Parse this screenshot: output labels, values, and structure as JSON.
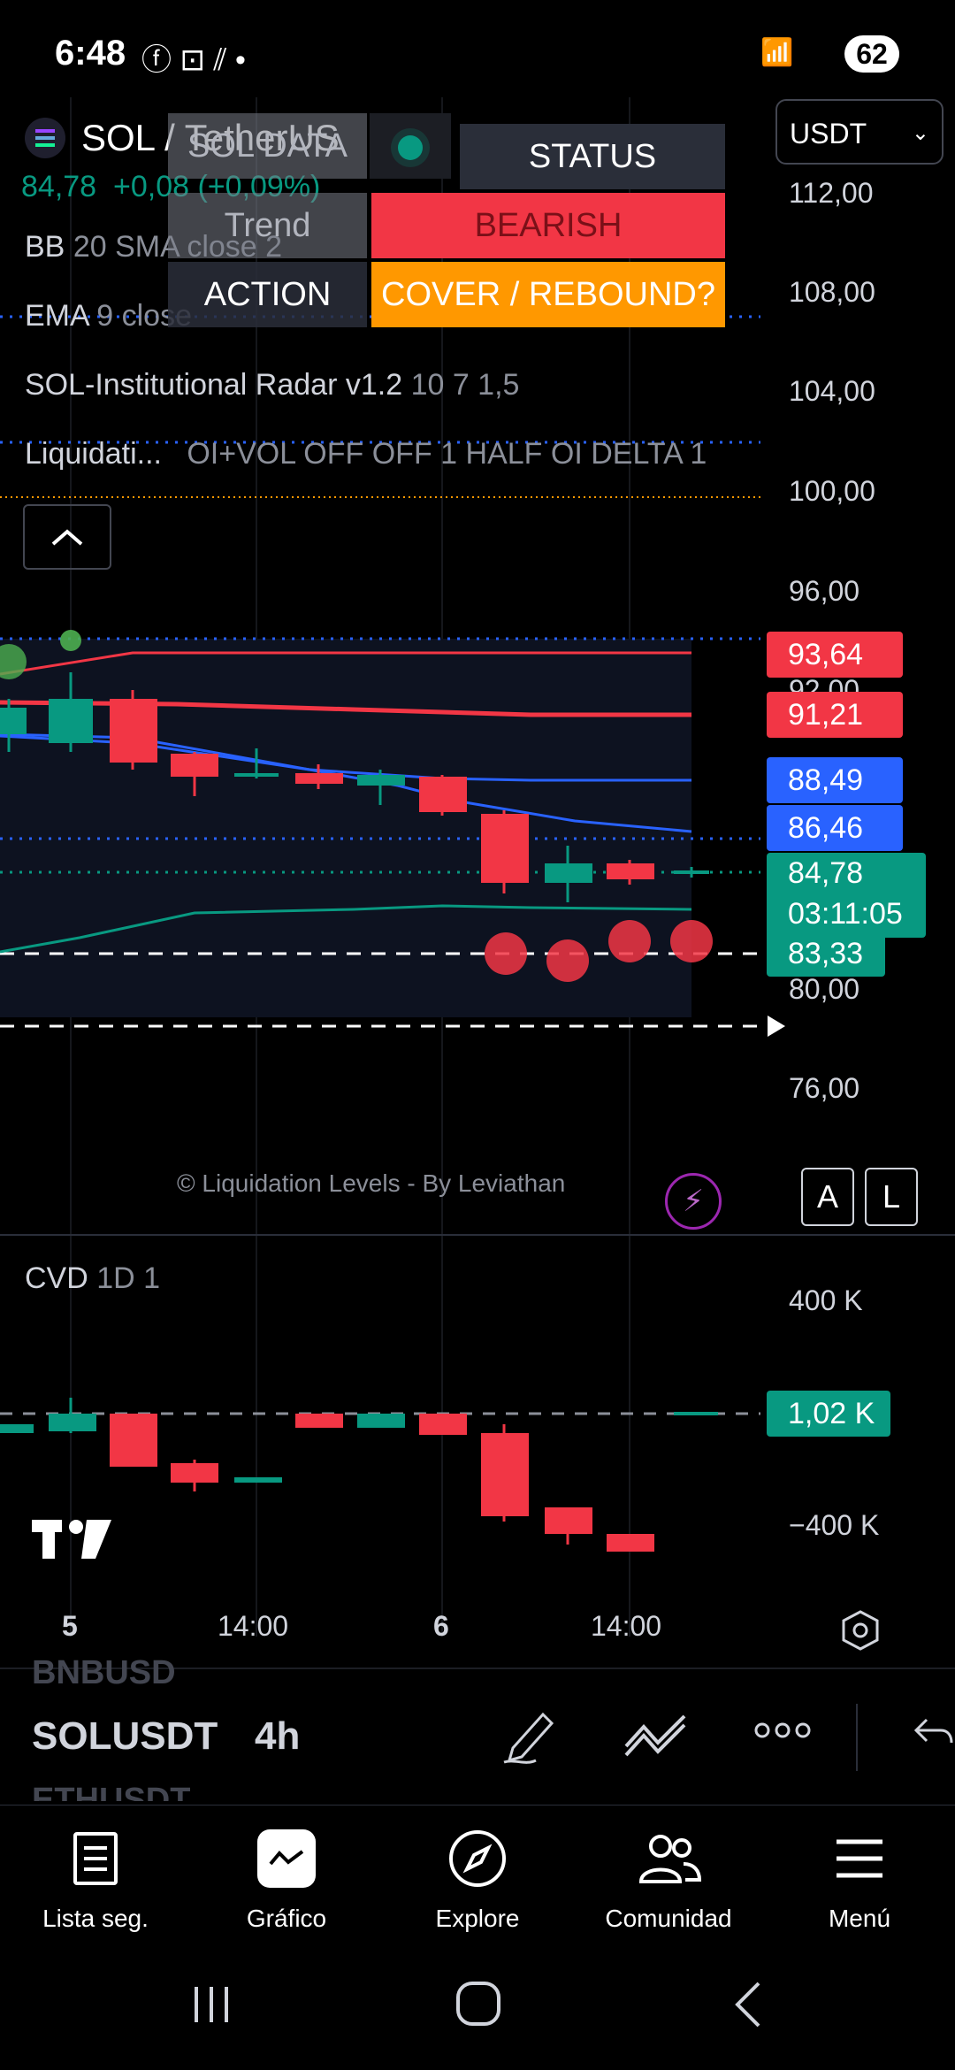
{
  "status_bar": {
    "time": "6:48",
    "battery": "62"
  },
  "symbol": {
    "pair": "SOL / TetherUS",
    "price": "84,78",
    "change": "+0,08 (+0,09%)"
  },
  "currency_select": {
    "label": "USDT"
  },
  "indicators": {
    "bb": {
      "name": "BB",
      "params": "20 SMA close 2"
    },
    "ema": {
      "name": "EMA",
      "params": "9 close"
    },
    "radar": {
      "name": "SOL-Institutional Radar v1.2",
      "params": "10 7 1,5"
    },
    "liq": {
      "name": "Liquidati...",
      "params": "OI+VOL OFF OFF 1 HALF OI DELTA 1"
    }
  },
  "data_table": {
    "title": "SOL DATA",
    "status_header": "STATUS",
    "trend_label": "Trend",
    "trend_value": "BEARISH",
    "action_label": "ACTION",
    "action_value": "COVER / REBOUND?"
  },
  "price_axis": [
    "112,00",
    "108,00",
    "104,00",
    "100,00",
    "96,00",
    "92,00",
    "80,00",
    "76,00"
  ],
  "price_tags": {
    "bb_upper": "93,64",
    "ema_red": "91,21",
    "blue1": "88,49",
    "blue2": "86,46",
    "last": "84,78",
    "countdown": "03:11:05",
    "level": "83,33"
  },
  "watermark": "© Liquidation Levels - By Leviathan",
  "scale_buttons": {
    "auto": "A",
    "log": "L"
  },
  "cvd": {
    "name": "CVD",
    "params": "1D 1",
    "axis": [
      "400 K",
      "−400 K"
    ],
    "value": "1,02 K"
  },
  "x_axis": [
    "5",
    "14:00",
    "6",
    "14:00"
  ],
  "toolbar": {
    "symbol": "SOLUSDT",
    "prev_symbol": "BNBUSD",
    "next_symbol": "ETHUSDT",
    "interval": "4h"
  },
  "bottom_nav": [
    {
      "label": "Lista seg.",
      "icon": "watchlist-icon"
    },
    {
      "label": "Gráfico",
      "icon": "chart-icon"
    },
    {
      "label": "Explore",
      "icon": "compass-icon"
    },
    {
      "label": "Comunidad",
      "icon": "community-icon"
    },
    {
      "label": "Menú",
      "icon": "menu-icon"
    }
  ],
  "colors": {
    "bull": "#089981",
    "bear": "#f23645",
    "blue": "#2962ff",
    "orange": "#ff9800"
  }
}
